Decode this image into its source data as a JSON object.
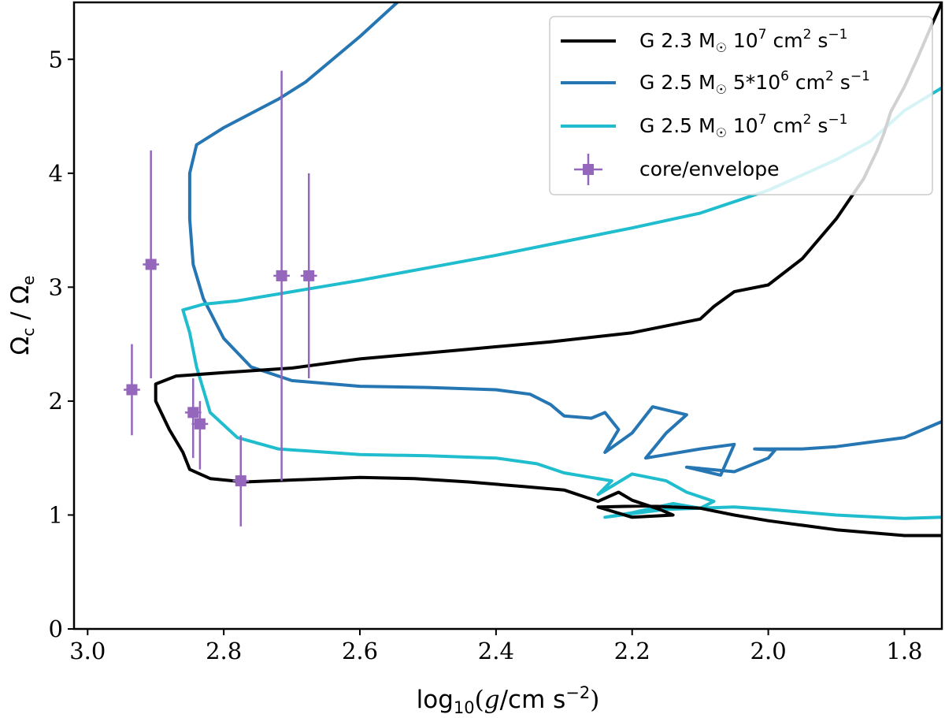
{
  "chart_data": {
    "type": "line",
    "xlabel_parts": {
      "pre": "log",
      "sub": "10",
      "mid": "(",
      "g": "g",
      "post": "/cm s",
      "sup": "−2",
      "close": ")"
    },
    "ylabel_parts": {
      "omega": "Ω",
      "sub_c": "c",
      "slash": " / ",
      "sub_e": "e"
    },
    "x_range": [
      3.02,
      1.745
    ],
    "x_reversed": true,
    "y_range": [
      0,
      5.5
    ],
    "xticks": [
      {
        "v": 3.0,
        "label": "3.0"
      },
      {
        "v": 2.8,
        "label": "2.8"
      },
      {
        "v": 2.6,
        "label": "2.6"
      },
      {
        "v": 2.4,
        "label": "2.4"
      },
      {
        "v": 2.2,
        "label": "2.2"
      },
      {
        "v": 2.0,
        "label": "2.0"
      },
      {
        "v": 1.8,
        "label": "1.8"
      }
    ],
    "yticks": [
      {
        "v": 0,
        "label": "0"
      },
      {
        "v": 1,
        "label": "1"
      },
      {
        "v": 2,
        "label": "2"
      },
      {
        "v": 3,
        "label": "3"
      },
      {
        "v": 4,
        "label": "4"
      },
      {
        "v": 5,
        "label": "5"
      }
    ],
    "legend_position": "top-right",
    "series": [
      {
        "legend": {
          "prefix": "G 2.3 M",
          "sun": "☉",
          "coef": " 10",
          "exp": "7",
          "unit1": " cm",
          "unit1_exp": "2",
          "unit2": " s",
          "unit2_exp": "−1"
        },
        "color": "#000000",
        "points": [
          [
            1.745,
            5.5
          ],
          [
            1.76,
            5.3
          ],
          [
            1.78,
            5.02
          ],
          [
            1.8,
            4.76
          ],
          [
            1.82,
            4.54
          ],
          [
            1.83,
            4.35
          ],
          [
            1.84,
            4.2
          ],
          [
            1.86,
            3.95
          ],
          [
            1.9,
            3.6
          ],
          [
            1.95,
            3.25
          ],
          [
            2.0,
            3.02
          ],
          [
            2.05,
            2.96
          ],
          [
            2.08,
            2.83
          ],
          [
            2.1,
            2.72
          ],
          [
            2.2,
            2.6
          ],
          [
            2.32,
            2.52
          ],
          [
            2.45,
            2.45
          ],
          [
            2.6,
            2.37
          ],
          [
            2.7,
            2.29
          ],
          [
            2.8,
            2.25
          ],
          [
            2.87,
            2.22
          ],
          [
            2.9,
            2.15
          ],
          [
            2.9,
            2.0
          ],
          [
            2.88,
            1.75
          ],
          [
            2.86,
            1.55
          ],
          [
            2.85,
            1.4
          ],
          [
            2.82,
            1.32
          ],
          [
            2.77,
            1.29
          ],
          [
            2.73,
            1.3
          ],
          [
            2.6,
            1.33
          ],
          [
            2.52,
            1.32
          ],
          [
            2.44,
            1.29
          ],
          [
            2.36,
            1.25
          ],
          [
            2.3,
            1.22
          ],
          [
            2.25,
            1.12
          ],
          [
            2.22,
            1.2
          ],
          [
            2.2,
            1.13
          ],
          [
            2.16,
            1.05
          ],
          [
            2.14,
            1.0
          ],
          [
            2.2,
            0.98
          ],
          [
            2.25,
            1.07
          ],
          [
            2.18,
            1.08
          ],
          [
            2.1,
            1.06
          ],
          [
            2.05,
            1.0
          ],
          [
            2.0,
            0.95
          ],
          [
            1.9,
            0.87
          ],
          [
            1.8,
            0.82
          ],
          [
            1.745,
            0.82
          ]
        ]
      },
      {
        "legend": {
          "prefix": "G 2.5 M",
          "sun": "☉",
          "coef": " 5*10",
          "exp": "6",
          "unit1": " cm",
          "unit1_exp": "2",
          "unit2": " s",
          "unit2_exp": "−1"
        },
        "color": "#2576b3",
        "points": [
          [
            2.545,
            5.5
          ],
          [
            2.6,
            5.2
          ],
          [
            2.68,
            4.8
          ],
          [
            2.72,
            4.65
          ],
          [
            2.8,
            4.4
          ],
          [
            2.84,
            4.25
          ],
          [
            2.85,
            4.0
          ],
          [
            2.85,
            3.6
          ],
          [
            2.845,
            3.2
          ],
          [
            2.83,
            2.9
          ],
          [
            2.8,
            2.55
          ],
          [
            2.76,
            2.3
          ],
          [
            2.7,
            2.18
          ],
          [
            2.6,
            2.13
          ],
          [
            2.5,
            2.12
          ],
          [
            2.4,
            2.1
          ],
          [
            2.35,
            2.06
          ],
          [
            2.32,
            1.97
          ],
          [
            2.3,
            1.87
          ],
          [
            2.26,
            1.85
          ],
          [
            2.24,
            1.9
          ],
          [
            2.22,
            1.75
          ],
          [
            2.24,
            1.55
          ],
          [
            2.2,
            1.72
          ],
          [
            2.17,
            1.95
          ],
          [
            2.12,
            1.88
          ],
          [
            2.15,
            1.72
          ],
          [
            2.18,
            1.5
          ],
          [
            2.1,
            1.58
          ],
          [
            2.05,
            1.62
          ],
          [
            2.07,
            1.35
          ],
          [
            2.12,
            1.42
          ],
          [
            2.05,
            1.38
          ],
          [
            2.0,
            1.5
          ],
          [
            1.99,
            1.57
          ],
          [
            2.02,
            1.58
          ],
          [
            1.95,
            1.58
          ],
          [
            1.9,
            1.6
          ],
          [
            1.8,
            1.68
          ],
          [
            1.745,
            1.82
          ]
        ]
      },
      {
        "legend": {
          "prefix": "G 2.5 M",
          "sun": "☉",
          "coef": " 10",
          "exp": "7",
          "unit1": " cm",
          "unit1_exp": "2",
          "unit2": " s",
          "unit2_exp": "−1"
        },
        "color": "#1fbdcd",
        "points": [
          [
            1.745,
            4.75
          ],
          [
            1.8,
            4.55
          ],
          [
            1.85,
            4.28
          ],
          [
            1.9,
            4.12
          ],
          [
            2.0,
            3.85
          ],
          [
            2.1,
            3.65
          ],
          [
            2.2,
            3.52
          ],
          [
            2.3,
            3.4
          ],
          [
            2.4,
            3.28
          ],
          [
            2.5,
            3.17
          ],
          [
            2.6,
            3.06
          ],
          [
            2.7,
            2.96
          ],
          [
            2.78,
            2.88
          ],
          [
            2.83,
            2.85
          ],
          [
            2.86,
            2.8
          ],
          [
            2.85,
            2.6
          ],
          [
            2.84,
            2.3
          ],
          [
            2.82,
            1.9
          ],
          [
            2.78,
            1.68
          ],
          [
            2.72,
            1.58
          ],
          [
            2.6,
            1.53
          ],
          [
            2.5,
            1.52
          ],
          [
            2.4,
            1.5
          ],
          [
            2.34,
            1.45
          ],
          [
            2.3,
            1.37
          ],
          [
            2.26,
            1.33
          ],
          [
            2.23,
            1.3
          ],
          [
            2.25,
            1.18
          ],
          [
            2.2,
            1.36
          ],
          [
            2.15,
            1.3
          ],
          [
            2.12,
            1.2
          ],
          [
            2.08,
            1.12
          ],
          [
            2.1,
            1.06
          ],
          [
            2.14,
            1.1
          ],
          [
            2.2,
            1.02
          ],
          [
            2.24,
            0.98
          ],
          [
            2.15,
            1.05
          ],
          [
            2.05,
            1.07
          ],
          [
            2.0,
            1.05
          ],
          [
            1.9,
            1.0
          ],
          [
            1.8,
            0.97
          ],
          [
            1.745,
            0.98
          ]
        ]
      }
    ],
    "errorbars": {
      "legend_label": "core/envelope",
      "color": "#9467bd",
      "points": [
        {
          "x": 2.935,
          "y": 2.1,
          "xerr": 0.012,
          "ylo": 1.7,
          "yhi": 2.5
        },
        {
          "x": 2.907,
          "y": 3.2,
          "xerr": 0.012,
          "ylo": 2.2,
          "yhi": 4.2
        },
        {
          "x": 2.845,
          "y": 1.9,
          "xerr": 0.012,
          "ylo": 1.5,
          "yhi": 2.2
        },
        {
          "x": 2.835,
          "y": 1.8,
          "xerr": 0.012,
          "ylo": 1.4,
          "yhi": 2.0
        },
        {
          "x": 2.775,
          "y": 1.3,
          "xerr": 0.012,
          "ylo": 0.9,
          "yhi": 1.7
        },
        {
          "x": 2.715,
          "y": 3.1,
          "xerr": 0.012,
          "ylo": 1.3,
          "yhi": 4.9
        },
        {
          "x": 2.675,
          "y": 3.1,
          "xerr": 0.012,
          "ylo": 2.2,
          "yhi": 4.0
        }
      ]
    }
  }
}
